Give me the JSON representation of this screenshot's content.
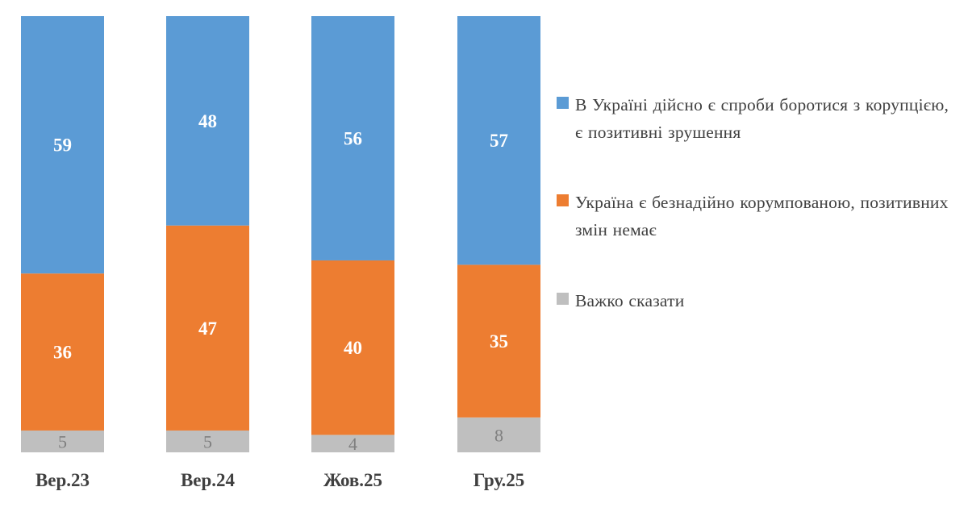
{
  "chart_data": {
    "type": "bar",
    "stacked": true,
    "categories": [
      "Вер.23",
      "Вер.24",
      "Жов.25",
      "Гру.25"
    ],
    "series": [
      {
        "name": "Важко сказати",
        "values": [
          5,
          5,
          4,
          8
        ],
        "color": "#bfbfbf",
        "label_color": "#7f7f7f"
      },
      {
        "name": "Україна є безнадійно корумпованою, позитивних змін немає",
        "values": [
          36,
          47,
          40,
          35
        ],
        "color": "#ed7d31",
        "label_color": "#ffffff"
      },
      {
        "name": "В Україні дійсно є спроби боротися з корупцією, є позитивні зрушення",
        "values": [
          59,
          48,
          56,
          57
        ],
        "color": "#5b9bd5",
        "label_color": "#ffffff"
      }
    ],
    "ylim": [
      0,
      100
    ],
    "grid": false,
    "legend_position": "right"
  }
}
